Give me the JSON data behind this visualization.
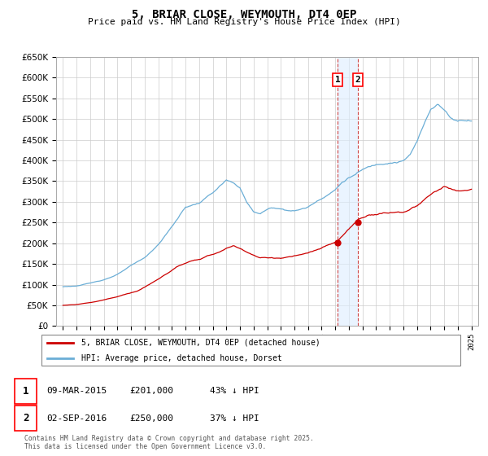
{
  "title": "5, BRIAR CLOSE, WEYMOUTH, DT4 0EP",
  "subtitle": "Price paid vs. HM Land Registry's House Price Index (HPI)",
  "legend_entry1": "5, BRIAR CLOSE, WEYMOUTH, DT4 0EP (detached house)",
  "legend_entry2": "HPI: Average price, detached house, Dorset",
  "footnote": "Contains HM Land Registry data © Crown copyright and database right 2025.\nThis data is licensed under the Open Government Licence v3.0.",
  "transaction1_date": "09-MAR-2015",
  "transaction1_price": "£201,000",
  "transaction1_hpi": "43% ↓ HPI",
  "transaction2_date": "02-SEP-2016",
  "transaction2_price": "£250,000",
  "transaction2_hpi": "37% ↓ HPI",
  "transaction1_year": 2015.17,
  "transaction1_value": 201000,
  "transaction2_year": 2016.67,
  "transaction2_value": 250000,
  "ylim": [
    0,
    650000
  ],
  "ytick_step": 50000,
  "xlim_start": 1994.5,
  "xlim_end": 2025.5,
  "hpi_color": "#6baed6",
  "hpi_shade_color": "#ddeeff",
  "property_color": "#cc0000",
  "vline_color": "#cc4444",
  "background_color": "#ffffff",
  "grid_color": "#cccccc"
}
